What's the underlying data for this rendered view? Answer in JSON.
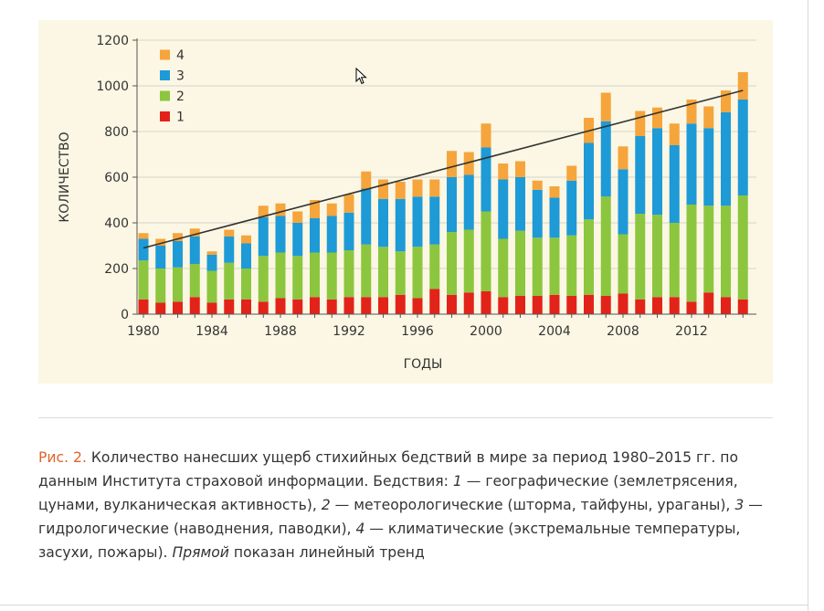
{
  "chart_data": {
    "type": "bar",
    "stacked": true,
    "xlabel": "ГОДЫ",
    "ylabel": "КОЛИЧЕСТВО",
    "ylim": [
      0,
      1200
    ],
    "yticks": [
      0,
      200,
      400,
      600,
      800,
      1000,
      1200
    ],
    "xticks": [
      1980,
      1984,
      1988,
      1992,
      1996,
      2000,
      2004,
      2008,
      2012
    ],
    "grid": true,
    "legend_position": "top-left",
    "categories": [
      1980,
      1981,
      1982,
      1983,
      1984,
      1985,
      1986,
      1987,
      1988,
      1989,
      1990,
      1991,
      1992,
      1993,
      1994,
      1995,
      1996,
      1997,
      1998,
      1999,
      2000,
      2001,
      2002,
      2003,
      2004,
      2005,
      2006,
      2007,
      2008,
      2009,
      2010,
      2011,
      2012,
      2013,
      2014,
      2015
    ],
    "series": [
      {
        "name": "1",
        "color": "#e2231a",
        "values": [
          65,
          50,
          55,
          75,
          50,
          65,
          65,
          55,
          70,
          65,
          75,
          65,
          75,
          75,
          75,
          85,
          70,
          110,
          85,
          95,
          100,
          75,
          80,
          80,
          85,
          80,
          85,
          80,
          90,
          65,
          75,
          75,
          55,
          95,
          75,
          65
        ]
      },
      {
        "name": "2",
        "color": "#8cc63e",
        "values": [
          170,
          150,
          150,
          145,
          140,
          160,
          135,
          200,
          200,
          190,
          195,
          205,
          205,
          230,
          220,
          190,
          225,
          195,
          275,
          275,
          350,
          255,
          285,
          255,
          250,
          265,
          330,
          435,
          260,
          375,
          360,
          325,
          425,
          380,
          400,
          455
        ]
      },
      {
        "name": "3",
        "color": "#1e9ad6",
        "values": [
          95,
          100,
          115,
          120,
          70,
          115,
          110,
          170,
          160,
          145,
          150,
          160,
          165,
          245,
          210,
          230,
          220,
          210,
          240,
          240,
          280,
          260,
          235,
          210,
          175,
          240,
          335,
          330,
          285,
          340,
          380,
          340,
          355,
          340,
          410,
          420
        ]
      },
      {
        "name": "4",
        "color": "#f5a53c",
        "values": [
          25,
          30,
          35,
          35,
          15,
          30,
          35,
          50,
          55,
          50,
          80,
          55,
          80,
          75,
          85,
          75,
          75,
          75,
          115,
          100,
          105,
          70,
          70,
          40,
          50,
          65,
          110,
          125,
          100,
          110,
          90,
          95,
          105,
          95,
          95,
          120
        ]
      }
    ],
    "trend": {
      "label": "линейный тренд",
      "start": [
        1980,
        290
      ],
      "end": [
        2015,
        980
      ]
    }
  },
  "caption": {
    "fig_label": "Рис. 2.",
    "seg1": " Количество нанесших ущерб стихийных бедствий в мире за период 1980–2015 гг. по данным Института страховой информации. Бедствия: ",
    "n1": "1",
    "seg2": " — географические (землетрясения, цунами, вулканическая активность), ",
    "n2": "2",
    "seg3": " — метеорологические (шторма, тайфуны, ураганы), ",
    "n3": "3",
    "seg4": " — гидрологические (наводнения, паводки), ",
    "n4": "4",
    "seg5": " — климатические (экстремальные температуры, засухи, пожары). ",
    "italic_word": "Прямой",
    "seg6": " показан линейный тренд"
  },
  "colors": {
    "figure_label": "#e0642c",
    "panel_background": "#fbf7e4",
    "trend_line": "#333333"
  }
}
